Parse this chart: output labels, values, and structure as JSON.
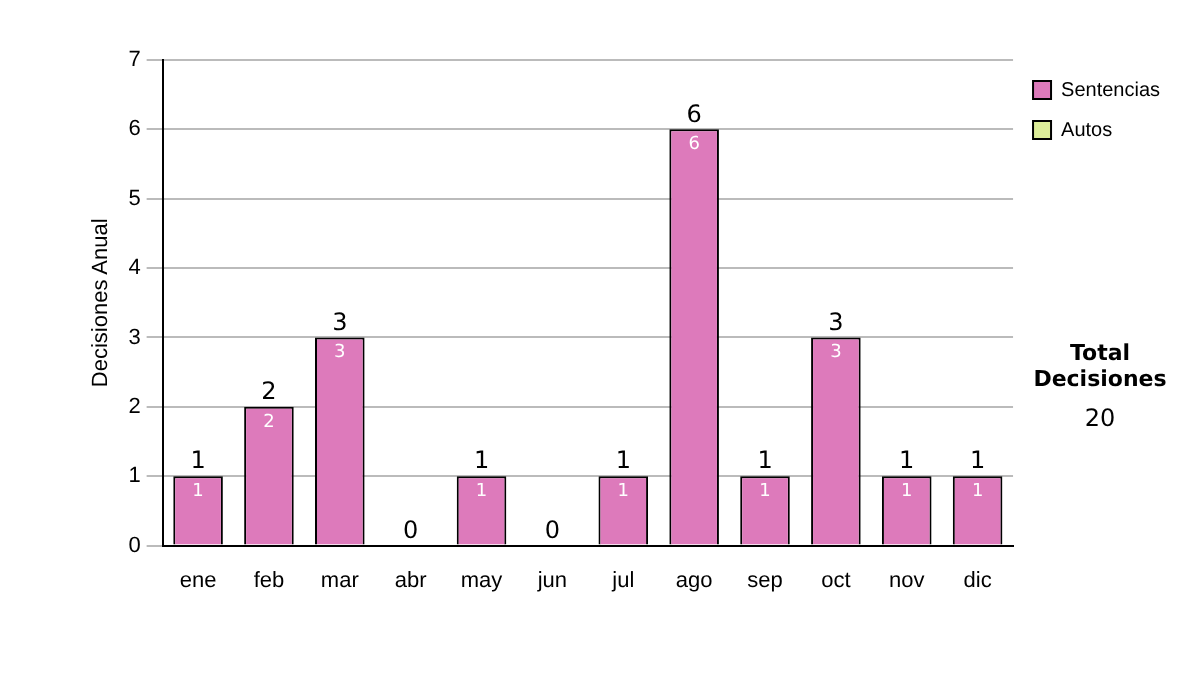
{
  "chart_data": {
    "type": "bar",
    "stacked": true,
    "ylabel": "Decisiones Anual",
    "categories": [
      "ene",
      "feb",
      "mar",
      "abr",
      "may",
      "jun",
      "jul",
      "ago",
      "sep",
      "oct",
      "nov",
      "dic"
    ],
    "series": [
      {
        "name": "Sentencias",
        "color": "#dd7abb",
        "values": [
          1,
          2,
          3,
          0,
          1,
          0,
          1,
          6,
          1,
          3,
          1,
          1
        ],
        "value_labels": [
          "1",
          "2",
          "3",
          null,
          "1",
          null,
          "1",
          "6",
          "1",
          "3",
          "1",
          "1"
        ]
      },
      {
        "name": "Autos",
        "color": "#ddee99",
        "values": [
          0,
          0,
          0,
          0,
          0,
          0,
          0,
          0,
          0,
          0,
          0,
          0
        ]
      }
    ],
    "totals": [
      "1",
      "2",
      "3",
      "0",
      "1",
      "0",
      "1",
      "6",
      "1",
      "3",
      "1",
      "1"
    ],
    "ylim": [
      0,
      7
    ],
    "yticks": [
      0,
      1,
      2,
      3,
      4,
      5,
      6,
      7
    ],
    "grid": "y",
    "legend": "right",
    "annotations": [
      "Total Decisiones",
      "20"
    ]
  }
}
